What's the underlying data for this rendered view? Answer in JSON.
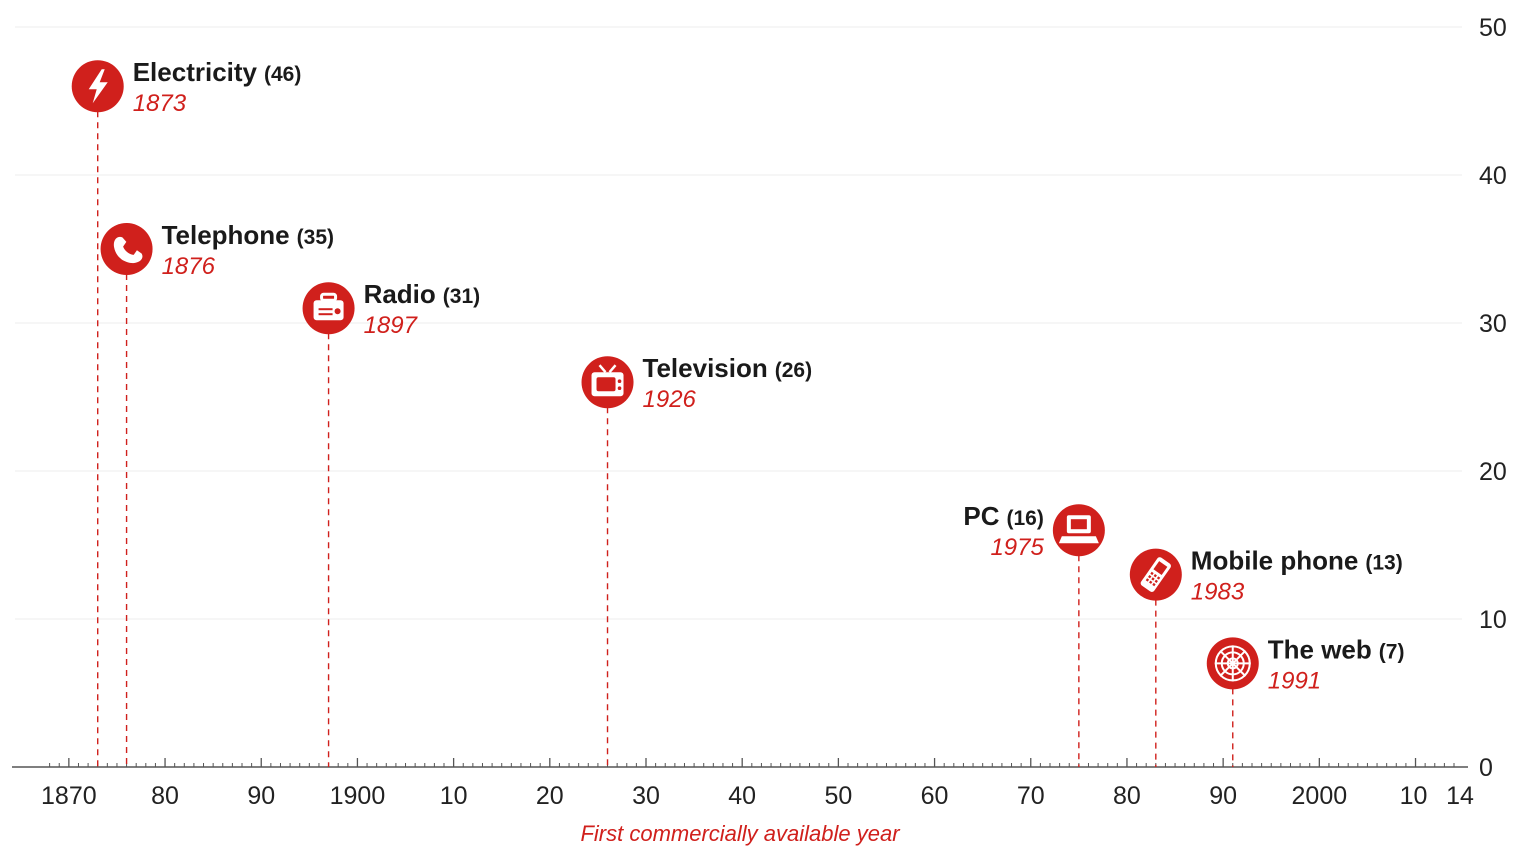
{
  "chart_data": {
    "type": "scatter",
    "xlabel": "First commercially available year",
    "ylabel": "",
    "xlim": [
      1867,
      2014
    ],
    "ylim": [
      0,
      50
    ],
    "x_ticks": [
      {
        "value": 1870,
        "label": "1870"
      },
      {
        "value": 1880,
        "label": "80"
      },
      {
        "value": 1890,
        "label": "90"
      },
      {
        "value": 1900,
        "label": "1900"
      },
      {
        "value": 1910,
        "label": "10"
      },
      {
        "value": 1920,
        "label": "20"
      },
      {
        "value": 1930,
        "label": "30"
      },
      {
        "value": 1940,
        "label": "40"
      },
      {
        "value": 1950,
        "label": "50"
      },
      {
        "value": 1960,
        "label": "60"
      },
      {
        "value": 1970,
        "label": "70"
      },
      {
        "value": 1980,
        "label": "80"
      },
      {
        "value": 1990,
        "label": "90"
      },
      {
        "value": 2000,
        "label": "2000"
      },
      {
        "value": 2010,
        "label": "10"
      },
      {
        "value": 2014,
        "label": "14"
      }
    ],
    "y_ticks": [
      {
        "value": 0,
        "label": "0"
      },
      {
        "value": 10,
        "label": "10"
      },
      {
        "value": 20,
        "label": "20"
      },
      {
        "value": 30,
        "label": "30"
      },
      {
        "value": 40,
        "label": "40"
      },
      {
        "value": 50,
        "label": "50"
      }
    ],
    "grid": "y-only",
    "y_axis_side": "right",
    "points": [
      {
        "name": "Electricity",
        "value": 46,
        "value_label": "(46)",
        "year": 1873,
        "year_label": "1873",
        "icon": "lightning-icon",
        "label_side": "right"
      },
      {
        "name": "Telephone",
        "value": 35,
        "value_label": "(35)",
        "year": 1876,
        "year_label": "1876",
        "icon": "telephone-icon",
        "label_side": "right"
      },
      {
        "name": "Radio",
        "value": 31,
        "value_label": "(31)",
        "year": 1897,
        "year_label": "1897",
        "icon": "radio-icon",
        "label_side": "right"
      },
      {
        "name": "Television",
        "value": 26,
        "value_label": "(26)",
        "year": 1926,
        "year_label": "1926",
        "icon": "television-icon",
        "label_side": "right"
      },
      {
        "name": "PC",
        "value": 16,
        "value_label": "(16)",
        "year": 1975,
        "year_label": "1975",
        "icon": "pc-icon",
        "label_side": "left"
      },
      {
        "name": "Mobile phone",
        "value": 13,
        "value_label": "(13)",
        "year": 1983,
        "year_label": "1983",
        "icon": "mobile-phone-icon",
        "label_side": "right"
      },
      {
        "name": "The web",
        "value": 7,
        "value_label": "(7)",
        "year": 1991,
        "year_label": "1991",
        "icon": "web-icon",
        "label_side": "right"
      }
    ],
    "colors": {
      "accent": "#d0201c",
      "grid": "#eeeeee",
      "axis": "#555555",
      "text": "#1a1a1a"
    }
  }
}
